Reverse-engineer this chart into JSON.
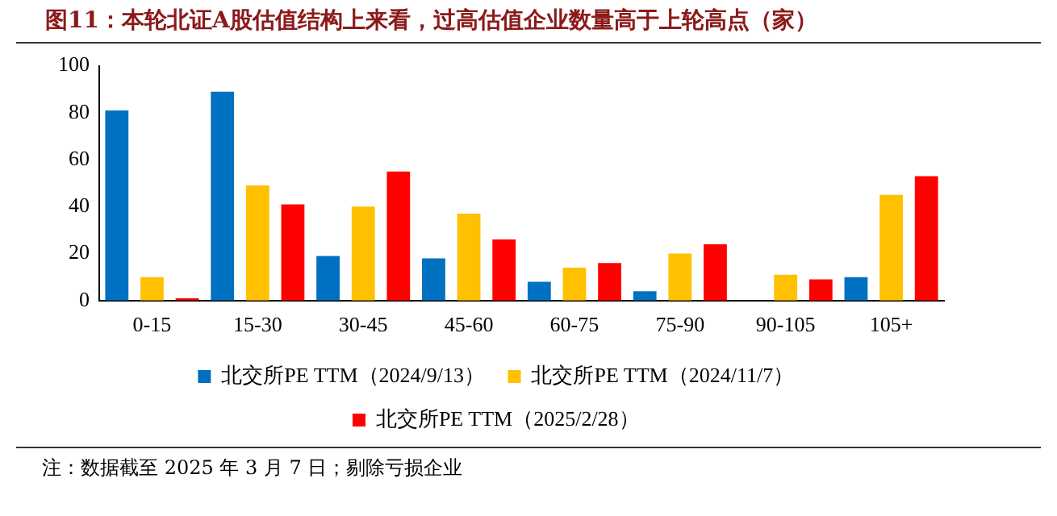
{
  "chart_data": {
    "type": "bar",
    "title": "图11：本轮北证A股估值结构上来看，过高估值企业数量高于上轮高点（家）",
    "categories": [
      "0-15",
      "15-30",
      "30-45",
      "45-60",
      "60-75",
      "75-90",
      "90-105",
      "105+"
    ],
    "series": [
      {
        "name": "北交所PE TTM（2024/9/13）",
        "color": "#0070c0",
        "values": [
          81,
          89,
          19,
          18,
          8,
          4,
          0,
          10
        ]
      },
      {
        "name": "北交所PE TTM（2024/11/7）",
        "color": "#ffc000",
        "values": [
          10,
          49,
          40,
          37,
          14,
          20,
          11,
          45
        ]
      },
      {
        "name": "北交所PE TTM（2025/2/28）",
        "color": "#ff0000",
        "values": [
          1,
          41,
          55,
          26,
          16,
          24,
          9,
          53
        ]
      }
    ],
    "ylim": [
      0,
      100
    ],
    "yticks": [
      0,
      20,
      40,
      60,
      80,
      100
    ],
    "grid": false,
    "legend": "bottom",
    "annotations": [
      "注：数据截至 2025 年 3 月 7 日；剔除亏损企业"
    ]
  }
}
